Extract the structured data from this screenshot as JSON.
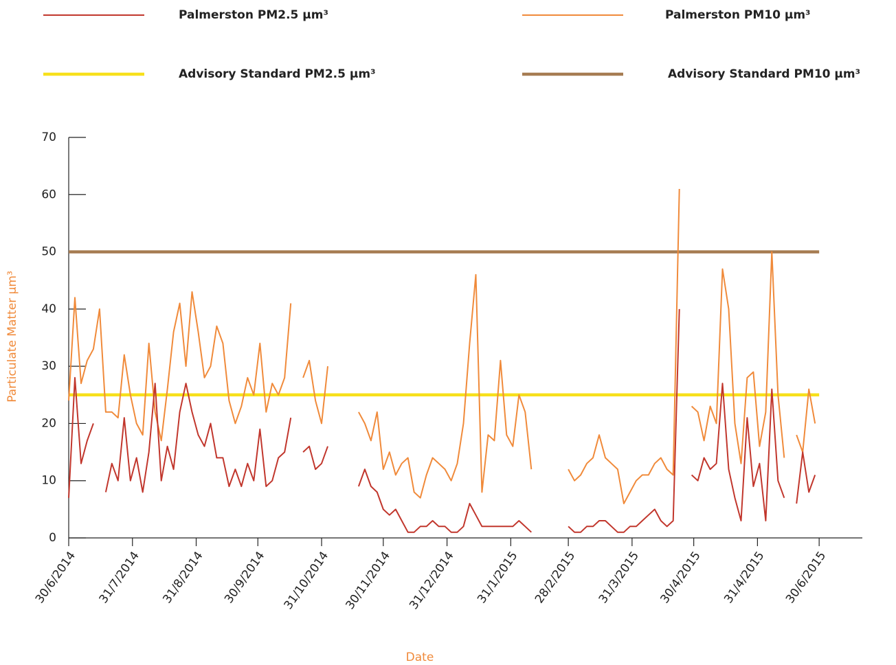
{
  "chart_data": {
    "type": "line",
    "x_label": "Date",
    "y_label": "Particulate Matter µm³",
    "xlim": [
      0,
      386
    ],
    "xticks": [
      {
        "value": 0,
        "label": "30/6/2014"
      },
      {
        "value": 31,
        "label": "31/7/2014"
      },
      {
        "value": 62,
        "label": "31/8/2014"
      },
      {
        "value": 92,
        "label": "30/9/2014"
      },
      {
        "value": 123,
        "label": "31/10/2014"
      },
      {
        "value": 153,
        "label": "30/11/2014"
      },
      {
        "value": 184,
        "label": "31/12/2014"
      },
      {
        "value": 215,
        "label": "31/1/2015"
      },
      {
        "value": 243,
        "label": "28/2/2015"
      },
      {
        "value": 274,
        "label": "31/3/2015"
      },
      {
        "value": 304,
        "label": "30/4/2015"
      },
      {
        "value": 335,
        "label": "31/4/2015"
      },
      {
        "value": 365,
        "label": "30/6/2015"
      }
    ],
    "ylim": [
      0,
      70
    ],
    "yticks": [
      0,
      10,
      20,
      30,
      40,
      50,
      60,
      70
    ],
    "x": [
      0,
      3,
      6,
      9,
      12,
      15,
      18,
      21,
      24,
      27,
      30,
      33,
      36,
      39,
      42,
      45,
      48,
      51,
      54,
      57,
      60,
      63,
      66,
      69,
      72,
      75,
      78,
      81,
      84,
      87,
      90,
      93,
      96,
      99,
      102,
      105,
      108,
      111,
      114,
      117,
      120,
      123,
      126,
      129,
      132,
      135,
      138,
      141,
      144,
      147,
      150,
      153,
      156,
      159,
      162,
      165,
      168,
      171,
      174,
      177,
      180,
      183,
      186,
      189,
      192,
      195,
      198,
      201,
      204,
      207,
      210,
      213,
      216,
      219,
      222,
      225,
      228,
      231,
      234,
      237,
      240,
      243,
      246,
      249,
      252,
      255,
      258,
      261,
      264,
      267,
      270,
      273,
      276,
      279,
      282,
      285,
      288,
      291,
      294,
      297,
      300,
      303,
      306,
      309,
      312,
      315,
      318,
      321,
      324,
      327,
      330,
      333,
      336,
      339,
      342,
      345,
      348,
      351,
      354,
      357,
      360,
      363
    ],
    "series": [
      {
        "name": "Palmerston PM2.5 µm³",
        "color": "#c1362c",
        "values": [
          7,
          28,
          13,
          17,
          20,
          null,
          8,
          13,
          10,
          21,
          10,
          14,
          8,
          15,
          27,
          10,
          16,
          12,
          22,
          27,
          22,
          18,
          16,
          20,
          14,
          14,
          9,
          12,
          9,
          13,
          10,
          19,
          9,
          10,
          14,
          15,
          21,
          null,
          15,
          16,
          12,
          13,
          16,
          null,
          null,
          null,
          null,
          9,
          12,
          9,
          8,
          5,
          4,
          5,
          3,
          1,
          1,
          2,
          2,
          3,
          2,
          2,
          1,
          1,
          2,
          6,
          4,
          2,
          2,
          2,
          2,
          2,
          2,
          3,
          2,
          1,
          null,
          1,
          null,
          3,
          null,
          2,
          1,
          1,
          2,
          2,
          3,
          3,
          2,
          1,
          1,
          2,
          2,
          3,
          4,
          5,
          3,
          2,
          3,
          40,
          null,
          11,
          10,
          14,
          12,
          13,
          27,
          12,
          7,
          3,
          21,
          9,
          13,
          3,
          26,
          10,
          7,
          null,
          6,
          15,
          8,
          11
        ]
      },
      {
        "name": "Palmerston PM10 µm³",
        "color": "#f08a3a",
        "values": [
          24,
          42,
          27,
          31,
          33,
          40,
          22,
          22,
          21,
          32,
          25,
          20,
          18,
          34,
          22,
          17,
          26,
          36,
          41,
          30,
          43,
          36,
          28,
          30,
          37,
          34,
          24,
          20,
          23,
          28,
          25,
          34,
          22,
          27,
          25,
          28,
          41,
          null,
          28,
          31,
          24,
          20,
          30,
          null,
          null,
          null,
          null,
          22,
          20,
          17,
          22,
          12,
          15,
          11,
          13,
          14,
          8,
          7,
          11,
          14,
          13,
          12,
          10,
          13,
          20,
          34,
          46,
          8,
          18,
          17,
          31,
          18,
          16,
          25,
          22,
          12,
          null,
          8,
          null,
          12,
          null,
          12,
          10,
          11,
          13,
          14,
          18,
          14,
          13,
          12,
          6,
          8,
          10,
          11,
          11,
          13,
          14,
          12,
          11,
          61,
          null,
          23,
          22,
          17,
          23,
          20,
          47,
          40,
          20,
          13,
          28,
          29,
          16,
          22,
          50,
          25,
          14,
          null,
          18,
          15,
          26,
          20
        ]
      }
    ],
    "reference_lines": [
      {
        "name": "Advisory Standard PM2.5 µm³",
        "color": "#f7e01b",
        "value": 25
      },
      {
        "name": "Advisory Standard PM10 µm³",
        "color": "#a67c52",
        "value": 50
      }
    ]
  }
}
